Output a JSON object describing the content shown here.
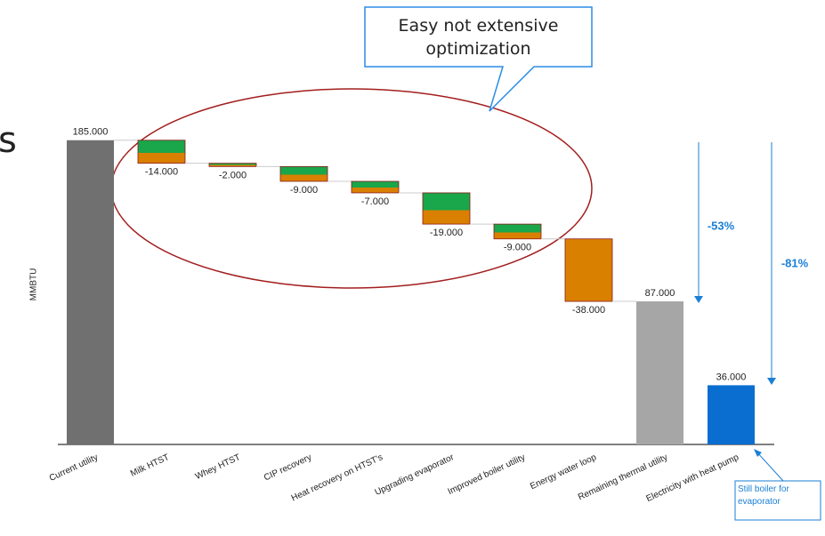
{
  "chart_data": {
    "type": "waterfall",
    "y_label": "MMBTU",
    "categories": [
      "Current utility",
      "Milk HTST",
      "Whey HTST",
      "CIP recovery",
      "Heat recovery on HTST's",
      "Upgrading evaporator",
      "Improved boiler utility",
      "Energy water loop",
      "Remaining thermal utility",
      "Electricity with heat pump"
    ],
    "measures": [
      "absolute",
      "relative",
      "relative",
      "relative",
      "relative",
      "relative",
      "relative",
      "relative",
      "total",
      "absolute"
    ],
    "values": [
      185,
      -14,
      -2,
      -9,
      -7,
      -19,
      -9,
      -38,
      87,
      36
    ],
    "value_labels": [
      "185.000",
      "-14.000",
      "-2.000",
      "-9.000",
      "-7.000",
      "-19.000",
      "-9.000",
      "-38.000",
      "87.000",
      "36.000"
    ],
    "colors": [
      "#707070",
      "#1aa64a",
      "#1aa64a",
      "#1aa64a",
      "#1aa64a",
      "#1aa64a",
      "#1aa64a",
      "#d98000",
      "#a6a6a6",
      "#0a6ed1"
    ],
    "ylim": [
      0,
      200
    ],
    "callout": "Easy not extensive optimization",
    "reductions": [
      "-53%",
      "-81%"
    ],
    "note": "Still boiler for evaporator",
    "fragment": "s"
  }
}
